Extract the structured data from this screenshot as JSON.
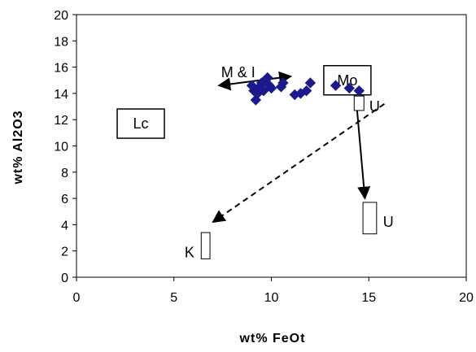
{
  "chart_data": {
    "type": "scatter",
    "title": "",
    "xlabel": "wt% FeOt",
    "ylabel": "wt% Al2O3",
    "xlim": [
      0,
      20
    ],
    "ylim": [
      0,
      20
    ],
    "xticks": [
      "0",
      "5",
      "10",
      "15",
      "20"
    ],
    "yticks": [
      "0",
      "2",
      "4",
      "6",
      "8",
      "10",
      "12",
      "14",
      "16",
      "18",
      "20"
    ],
    "grid": false,
    "legend": "none",
    "marker_color": "#1a1a8c",
    "series": [
      {
        "marker": "diamond",
        "points": [
          [
            9.0,
            14.6
          ],
          [
            9.1,
            14.2
          ],
          [
            9.2,
            13.5
          ],
          [
            9.3,
            14.0
          ],
          [
            9.4,
            14.5
          ],
          [
            9.5,
            14.8
          ],
          [
            9.6,
            14.2
          ],
          [
            9.7,
            15.0
          ],
          [
            9.8,
            15.2
          ],
          [
            9.9,
            14.6
          ],
          [
            10.0,
            14.4
          ],
          [
            10.5,
            14.5
          ],
          [
            10.6,
            14.8
          ],
          [
            11.2,
            13.9
          ],
          [
            11.5,
            14.0
          ],
          [
            11.8,
            14.2
          ],
          [
            12.0,
            14.8
          ],
          [
            13.3,
            14.6
          ],
          [
            14.0,
            14.4
          ],
          [
            14.5,
            14.2
          ]
        ]
      }
    ],
    "annotations": {
      "boxed_labels": [
        {
          "text": "Lc",
          "x": 3.3,
          "y": 11.7
        },
        {
          "text": "Mo",
          "x": 13.9,
          "y": 15.0
        }
      ],
      "labels": [
        {
          "text": "M & I",
          "x": 8.3,
          "y": 15.6
        },
        {
          "text": "U",
          "x": 15.3,
          "y": 13.0
        },
        {
          "text": "U",
          "x": 16.0,
          "y": 4.2
        },
        {
          "text": "K",
          "x": 5.8,
          "y": 1.9
        }
      ],
      "rectangles": [
        {
          "x0": 14.25,
          "x1": 14.75,
          "y0": 12.7,
          "y1": 13.8
        },
        {
          "x0": 14.7,
          "x1": 15.4,
          "y0": 3.3,
          "y1": 5.7
        },
        {
          "x0": 6.4,
          "x1": 6.85,
          "y0": 1.4,
          "y1": 3.4
        }
      ],
      "arrows": [
        {
          "from": [
            11.0,
            15.3
          ],
          "to": [
            7.3,
            14.6
          ],
          "style": "solid",
          "double": true
        },
        {
          "from": [
            14.4,
            12.7
          ],
          "to": [
            14.8,
            6.0
          ],
          "style": "solid",
          "double": false
        },
        {
          "from": [
            15.8,
            13.2
          ],
          "to": [
            7.0,
            4.2
          ],
          "style": "dashed",
          "double": false
        }
      ]
    }
  }
}
